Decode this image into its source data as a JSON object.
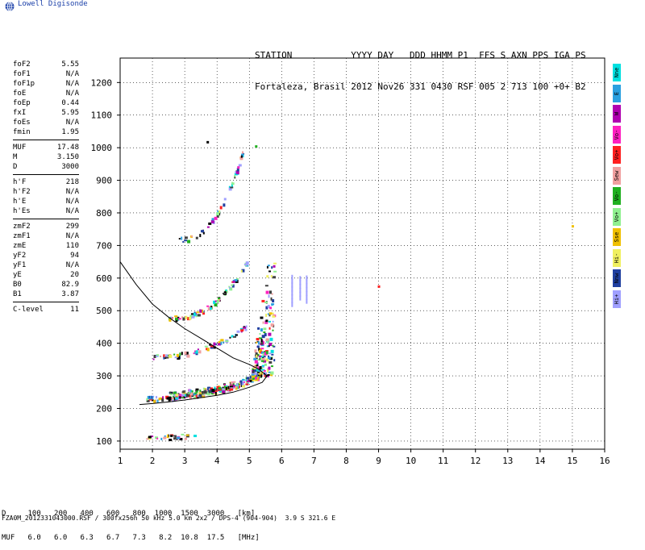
{
  "logo_text": "Lowell Digisonde",
  "header": {
    "line1": "STATION           YYYY DAY   DDD HHMM P1  FFS S AXN PPS IGA PS",
    "line2": "Fortaleza, Brasil 2012 Nov26 331 0430 RSF 005 2 713 100 +0+ B2"
  },
  "params": {
    "group1": [
      {
        "k": "foF2",
        "v": "5.55"
      },
      {
        "k": "foF1",
        "v": "N/A"
      },
      {
        "k": "foF1p",
        "v": "N/A"
      },
      {
        "k": "foE",
        "v": "N/A"
      },
      {
        "k": "foEp",
        "v": "0.44"
      },
      {
        "k": "fxI",
        "v": "5.95"
      },
      {
        "k": "foEs",
        "v": "N/A"
      },
      {
        "k": "fmin",
        "v": "1.95"
      }
    ],
    "group2": [
      {
        "k": "MUF",
        "v": "17.48"
      },
      {
        "k": "M",
        "v": "3.150"
      },
      {
        "k": "D",
        "v": "3000"
      }
    ],
    "group3": [
      {
        "k": "h'F",
        "v": "218"
      },
      {
        "k": "h'F2",
        "v": "N/A"
      },
      {
        "k": "h'E",
        "v": "N/A"
      },
      {
        "k": "h'Es",
        "v": "N/A"
      }
    ],
    "group4": [
      {
        "k": "zmF2",
        "v": "299"
      },
      {
        "k": "zmF1",
        "v": "N/A"
      },
      {
        "k": "zmE",
        "v": "110"
      },
      {
        "k": "yF2",
        "v": "94"
      },
      {
        "k": "yF1",
        "v": "N/A"
      },
      {
        "k": "yE",
        "v": "20"
      },
      {
        "k": "B0",
        "v": "82.9"
      },
      {
        "k": "B1",
        "v": "3.87"
      }
    ],
    "group5": [
      {
        "k": "C-level",
        "v": "11"
      }
    ]
  },
  "legend": [
    {
      "label": "Nne",
      "color": "#00e0e0"
    },
    {
      "label": "E",
      "color": "#2aa0e0"
    },
    {
      "label": "W",
      "color": "#b000b0"
    },
    {
      "label": "Vo-",
      "color": "#ff20c0"
    },
    {
      "label": "Vo+",
      "color": "#ff2020"
    },
    {
      "label": "Sew",
      "color": "#f0a0a0"
    },
    {
      "label": "Vo-",
      "color": "#20b020"
    },
    {
      "label": "Vo+",
      "color": "#90f090"
    },
    {
      "label": "Sse",
      "color": "#f0c000"
    },
    {
      "label": "Hi-",
      "color": "#f0f060"
    },
    {
      "label": "Nnw",
      "color": "#2040a0"
    },
    {
      "label": "Hi+",
      "color": "#a0a0ff"
    }
  ],
  "table": {
    "line1": "D     100   200   400   600   800  1000  1500  3000   [km]",
    "line2": "MUF   6.0   6.0   6.3   6.7   7.3   8.2  10.8  17.5   [MHz]"
  },
  "footer": "FZA0M_2012331043000.RSF / 300fx256h 50 kHz 5.0 km 2x2 / DPS-4 (904-904)  3.9 S 321.6 E",
  "chart_data": {
    "type": "scatter",
    "xlim": [
      1,
      16
    ],
    "ylim": [
      75,
      1275
    ],
    "x_ticks": [
      1,
      2,
      3,
      4,
      5,
      6,
      7,
      8,
      9,
      10,
      11,
      12,
      13,
      14,
      15,
      16
    ],
    "y_ticks": [
      100,
      200,
      300,
      400,
      500,
      600,
      700,
      800,
      900,
      1000,
      1100,
      1200
    ],
    "grid": true,
    "model_profile": [
      [
        1.0,
        650
      ],
      [
        1.5,
        580
      ],
      [
        2.0,
        520
      ],
      [
        2.5,
        480
      ],
      [
        3.0,
        445
      ],
      [
        3.5,
        415
      ],
      [
        4.0,
        385
      ],
      [
        4.5,
        355
      ],
      [
        5.0,
        335
      ],
      [
        5.3,
        320
      ],
      [
        5.55,
        300
      ],
      [
        5.4,
        280
      ],
      [
        5.0,
        265
      ],
      [
        4.5,
        250
      ],
      [
        4.0,
        240
      ],
      [
        3.5,
        233
      ],
      [
        3.0,
        226
      ],
      [
        2.5,
        220
      ],
      [
        2.0,
        215
      ],
      [
        1.6,
        212
      ]
    ],
    "traces": [
      {
        "name": "F1",
        "x0": 1.8,
        "x1": 5.3,
        "y0": 232,
        "y1": 300,
        "curve": 0.6,
        "n": 160
      },
      {
        "name": "F1b",
        "x0": 2.5,
        "x1": 5.4,
        "y0": 250,
        "y1": 310,
        "curve": 0.5,
        "n": 120
      },
      {
        "name": "F2",
        "x0": 2.0,
        "x1": 4.9,
        "y0": 360,
        "y1": 455,
        "curve": 0.6,
        "n": 70
      },
      {
        "name": "F3",
        "x0": 2.5,
        "x1": 4.9,
        "y0": 480,
        "y1": 650,
        "curve": 0.7,
        "n": 80
      },
      {
        "name": "F4",
        "x0": 2.8,
        "x1": 4.8,
        "y0": 720,
        "y1": 1000,
        "curve": 0.7,
        "n": 55
      },
      {
        "name": "Es",
        "x0": 1.7,
        "x1": 3.4,
        "y0": 110,
        "y1": 118,
        "curve": 0.0,
        "n": 28
      },
      {
        "name": "spread",
        "x0": 5.05,
        "x1": 5.75,
        "y0": 300,
        "y1": 780,
        "curve": 0.0,
        "n": 180
      }
    ],
    "points": [
      {
        "x": 9.0,
        "y": 575,
        "c": "#ff2020"
      },
      {
        "x": 15.0,
        "y": 760,
        "c": "#f0c000"
      },
      {
        "x": 5.2,
        "y": 1005,
        "c": "#20b020"
      },
      {
        "x": 3.7,
        "y": 1018,
        "c": "#000000"
      }
    ],
    "lavender": [
      {
        "x": 6.3,
        "y0": 520,
        "y1": 610
      },
      {
        "x": 6.55,
        "y0": 540,
        "y1": 610
      },
      {
        "x": 6.75,
        "y0": 530,
        "y1": 610
      }
    ]
  }
}
